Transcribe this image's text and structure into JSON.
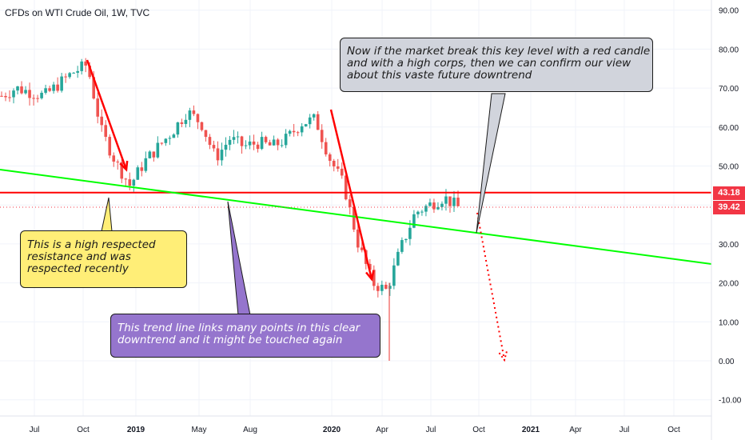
{
  "header": {
    "title": "CFDs on WTI Crude Oil, 1W, TVC"
  },
  "chart_data": {
    "type": "candlestick",
    "title": "CFDs on WTI Crude Oil, 1W, TVC",
    "y_axis": {
      "ticks": [
        "90.00",
        "80.00",
        "70.00",
        "60.00",
        "50.00",
        "40.00",
        "30.00",
        "20.00",
        "10.00",
        "0.00",
        "-10.00"
      ],
      "range": [
        -10,
        92
      ]
    },
    "x_axis": {
      "ticks": [
        "Jul",
        "Oct",
        "2019",
        "May",
        "Aug",
        "2020",
        "Apr",
        "Jul",
        "Oct",
        "2021",
        "Apr",
        "Jul",
        "Oct"
      ],
      "bold_ticks": [
        "2019",
        "2020",
        "2021"
      ]
    },
    "price_labels": [
      {
        "text": "43.18",
        "value": 43.18,
        "color": "#f23645"
      },
      {
        "text": "39.42",
        "value": 39.42,
        "color": "#f23645"
      }
    ],
    "lines": [
      {
        "name": "resistance",
        "value": 43.18,
        "color": "#ff0000"
      },
      {
        "name": "trend_line",
        "from": [
          "2018-05",
          48.5
        ],
        "to": [
          "2021-12",
          24.5
        ],
        "color": "#00ff00"
      }
    ],
    "candles_weekly_close": [
      [
        "2018-05",
        68
      ],
      [
        "2018-06",
        70
      ],
      [
        "2018-07",
        69
      ],
      [
        "2018-08",
        68
      ],
      [
        "2018-09",
        71
      ],
      [
        "2018-10",
        74
      ],
      [
        "2018-10b",
        76
      ],
      [
        "2018-11",
        59
      ],
      [
        "2018-11b",
        51
      ],
      [
        "2018-12",
        45
      ],
      [
        "2019-01",
        51
      ],
      [
        "2019-02",
        55
      ],
      [
        "2019-03",
        59
      ],
      [
        "2019-04",
        64
      ],
      [
        "2019-05",
        61
      ],
      [
        "2019-06",
        52
      ],
      [
        "2019-07",
        57
      ],
      [
        "2019-08",
        55
      ],
      [
        "2019-09",
        56
      ],
      [
        "2019-10",
        55
      ],
      [
        "2019-11",
        57
      ],
      [
        "2019-12",
        61
      ],
      [
        "2020-01",
        62
      ],
      [
        "2020-01b",
        52
      ],
      [
        "2020-02",
        45
      ],
      [
        "2020-03",
        30
      ],
      [
        "2020-03b",
        20
      ],
      [
        "2020-04",
        18
      ],
      [
        "2020-05",
        29
      ],
      [
        "2020-06",
        38
      ],
      [
        "2020-07",
        40
      ],
      [
        "2020-08",
        42
      ],
      [
        "2020-09",
        39.42
      ]
    ],
    "annotations": [
      {
        "type": "arrow",
        "color": "#ff0000",
        "from": [
          "2018-10",
          76
        ],
        "to": [
          "2018-12",
          44
        ]
      },
      {
        "type": "arrow",
        "color": "#ff0000",
        "from": [
          "2020-01",
          65
        ],
        "to": [
          "2020-04",
          20
        ]
      },
      {
        "type": "dotted-arrow",
        "color": "#ff0000",
        "from": [
          "2020-09",
          38
        ],
        "to": [
          "2020-11",
          0
        ]
      }
    ]
  },
  "callouts": {
    "top": "Now if the market break this key level with a red candle and with a high corps, then we can confirm our view about this vaste future downtrend",
    "left": "This is a high respected resistance and was respected recently",
    "bottom": "This trend line links many points in this clear downtrend and it might be touched again"
  },
  "colors": {
    "up": "#26a69a",
    "down": "#ef5350",
    "callout_top": "#d1d4dc",
    "callout_left": "#ffee77",
    "callout_bottom": "#9575cd"
  }
}
